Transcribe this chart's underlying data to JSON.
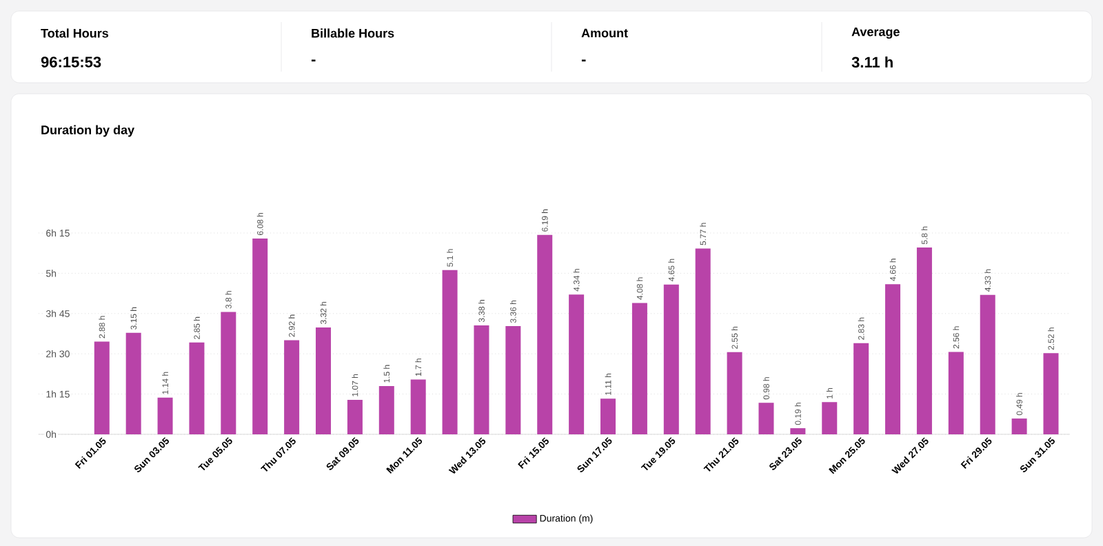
{
  "chart_data": {
    "type": "bar",
    "title": "Duration by day",
    "categories": [
      "Fri 01.05",
      null,
      "Sun 03.05",
      null,
      "Tue 05.05",
      null,
      "Thu 07.05",
      null,
      "Sat 09.05",
      null,
      "Mon 11.05",
      null,
      "Wed 13.05",
      null,
      "Fri 15.05",
      null,
      "Sun 17.05",
      null,
      "Tue 19.05",
      null,
      "Thu 21.05",
      null,
      "Sat 23.05",
      null,
      "Mon 25.05",
      null,
      "Wed 27.05",
      null,
      "Fri 29.05",
      null,
      "Sun 31.05"
    ],
    "series": [
      {
        "name": "Duration (m)",
        "color": "#b843a8",
        "values": [
          2.88,
          3.15,
          1.14,
          2.85,
          3.8,
          6.08,
          2.92,
          3.32,
          1.07,
          1.5,
          1.7,
          5.1,
          3.38,
          3.36,
          6.19,
          4.34,
          1.11,
          4.08,
          4.65,
          5.77,
          2.55,
          0.98,
          0.19,
          1,
          2.83,
          4.66,
          5.8,
          2.56,
          4.33,
          0.49,
          2.52
        ],
        "value_labels": [
          "2.88 h",
          "3.15 h",
          "1.14 h",
          "2.85 h",
          "3.8 h",
          "6.08 h",
          "2.92 h",
          "3.32 h",
          "1.07 h",
          "1.5 h",
          "1.7 h",
          "5.1 h",
          "3.38 h",
          "3.36 h",
          "6.19 h",
          "4.34 h",
          "1.11 h",
          "4.08 h",
          "4.65 h",
          "5.77 h",
          "2.55 h",
          "0.98 h",
          "0.19 h",
          "1 h",
          "2.83 h",
          "4.66 h",
          "5.8 h",
          "2.56 h",
          "4.33 h",
          "0.49 h",
          "2.52 h"
        ]
      }
    ],
    "ylim": [
      0,
      6.25
    ],
    "yticks": [
      {
        "value": 0,
        "label": "0h"
      },
      {
        "value": 1.25,
        "label": "1h 15"
      },
      {
        "value": 2.5,
        "label": "2h 30"
      },
      {
        "value": 3.75,
        "label": "3h 45"
      },
      {
        "value": 5,
        "label": "5h"
      },
      {
        "value": 6.25,
        "label": "6h 15"
      }
    ],
    "grid": "y",
    "legend": "bottom",
    "annotations": [
      "Total Hours",
      "96:15:53",
      "Billable Hours",
      "-",
      "Amount",
      "-",
      "Average",
      "3.11 h"
    ]
  }
}
